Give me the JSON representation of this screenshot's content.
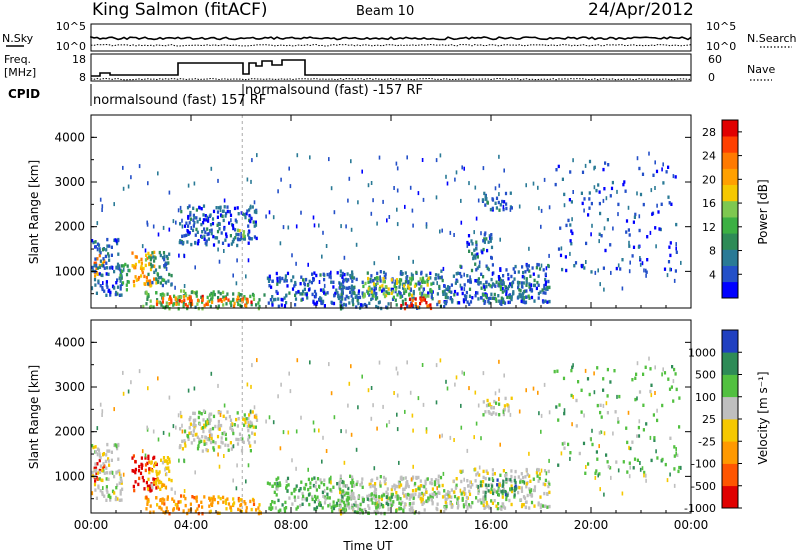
{
  "header": {
    "station": "King Salmon (fitACF)",
    "beam": "Beam 10",
    "date": "24/Apr/2012"
  },
  "top_panels": {
    "nsky_label": "N.Sky",
    "nsky_ticks": [
      "10^5",
      "10^0"
    ],
    "nsearch_label": "N.Search",
    "nsearch_ticks": [
      "10^5",
      "10^0"
    ],
    "freq_label_1": "Freq.",
    "freq_label_2": "[MHz]",
    "freq_ticks": [
      "18",
      "8"
    ],
    "nave_label": "Nave",
    "nave_ticks": [
      "60",
      "0"
    ],
    "cpid_label": "CPID",
    "cpid_modes": [
      "normalsound (fast) 157 RF",
      "normalsound (fast) -157 RF"
    ]
  },
  "chart_data": [
    {
      "type": "heatmap",
      "name": "power",
      "ylabel": "Slant Range [km]",
      "xlabel": "",
      "x_ticks": [
        "00:00",
        "04:00",
        "08:00",
        "12:00",
        "16:00",
        "20:00",
        "00:00"
      ],
      "xlim_hours": [
        0,
        24
      ],
      "ylim_km": [
        180,
        4500
      ],
      "y_ticks": [
        1000,
        2000,
        3000,
        4000
      ],
      "colorbar": {
        "label": "Power [dB]",
        "ticks": [
          "28",
          "24",
          "20",
          "16",
          "12",
          "8",
          "4"
        ],
        "range": [
          0,
          30
        ],
        "colors": [
          "#0000ff",
          "#2450c8",
          "#2a7a96",
          "#2e8b57",
          "#3cb043",
          "#7ec850",
          "#f5c800",
          "#ffa000",
          "#ff7a00",
          "#ff4000",
          "#e00000"
        ]
      },
      "regions": [
        {
          "t0": 0.1,
          "t1": 0.5,
          "r0": 850,
          "r1": 1450,
          "level": 22
        },
        {
          "t0": 0.0,
          "t1": 1.2,
          "r0": 500,
          "r1": 1750,
          "level": 5
        },
        {
          "t0": 1.0,
          "t1": 1.5,
          "r0": 600,
          "r1": 1200,
          "level": 10
        },
        {
          "t0": 1.6,
          "t1": 2.6,
          "r0": 700,
          "r1": 1500,
          "level": 20
        },
        {
          "t0": 2.2,
          "t1": 3.2,
          "r0": 700,
          "r1": 1500,
          "level": 8
        },
        {
          "t0": 2.0,
          "t1": 6.9,
          "r0": 200,
          "r1": 600,
          "level": 12
        },
        {
          "t0": 2.3,
          "t1": 6.5,
          "r0": 250,
          "r1": 480,
          "level": 24
        },
        {
          "t0": 3.5,
          "t1": 6.6,
          "r0": 1600,
          "r1": 2500,
          "level": 5
        },
        {
          "t0": 5.8,
          "t1": 6.2,
          "r0": 1750,
          "r1": 2000,
          "level": 14
        },
        {
          "t0": 7.0,
          "t1": 10.5,
          "r0": 250,
          "r1": 1000,
          "level": 5
        },
        {
          "t0": 9.8,
          "t1": 14.5,
          "r0": 200,
          "r1": 1050,
          "level": 6
        },
        {
          "t0": 10.8,
          "t1": 13.6,
          "r0": 450,
          "r1": 900,
          "level": 15
        },
        {
          "t0": 12.3,
          "t1": 13.9,
          "r0": 200,
          "r1": 450,
          "level": 26
        },
        {
          "t0": 14.5,
          "t1": 18.3,
          "r0": 300,
          "r1": 1200,
          "level": 5
        },
        {
          "t0": 15.5,
          "t1": 17.5,
          "r0": 400,
          "r1": 800,
          "level": 9
        },
        {
          "t0": 15.0,
          "t1": 16.0,
          "r0": 1300,
          "r1": 1900,
          "level": 5
        },
        {
          "t0": 15.6,
          "t1": 16.8,
          "r0": 2400,
          "r1": 2800,
          "level": 5
        },
        {
          "t0": 18.5,
          "t1": 23.5,
          "r0": 1000,
          "r1": 3500,
          "level": 4
        }
      ]
    },
    {
      "type": "heatmap",
      "name": "velocity",
      "ylabel": "Slant Range [km]",
      "xlabel": "Time UT",
      "x_ticks": [
        "00:00",
        "04:00",
        "08:00",
        "12:00",
        "16:00",
        "20:00",
        "00:00"
      ],
      "xlim_hours": [
        0,
        24
      ],
      "ylim_km": [
        180,
        4500
      ],
      "y_ticks": [
        1000,
        2000,
        3000,
        4000
      ],
      "colorbar": {
        "label": "Velocity [m s⁻¹]",
        "ticks": [
          "1000",
          "500",
          "100",
          "25",
          "-25",
          "-100",
          "-500",
          "-1000"
        ],
        "colors": [
          "#2040c0",
          "#2e8b57",
          "#52c040",
          "#bfbfbf",
          "#f5c800",
          "#ff9900",
          "#ff5500",
          "#e00000"
        ]
      },
      "regions": [
        {
          "t0": 0.1,
          "t1": 0.5,
          "r0": 850,
          "r1": 1450,
          "cls": 7
        },
        {
          "t0": 0.0,
          "t1": 1.2,
          "r0": 500,
          "r1": 1750,
          "cls": 3
        },
        {
          "t0": 1.6,
          "t1": 2.6,
          "r0": 700,
          "r1": 1500,
          "cls": 7
        },
        {
          "t0": 2.2,
          "t1": 3.2,
          "r0": 700,
          "r1": 1500,
          "cls": 4
        },
        {
          "t0": 2.0,
          "t1": 6.9,
          "r0": 200,
          "r1": 600,
          "cls": 5
        },
        {
          "t0": 3.5,
          "t1": 6.6,
          "r0": 1600,
          "r1": 2500,
          "cls": 3
        },
        {
          "t0": 7.0,
          "t1": 10.5,
          "r0": 250,
          "r1": 1000,
          "cls": 2
        },
        {
          "t0": 9.8,
          "t1": 14.5,
          "r0": 200,
          "r1": 1050,
          "cls": 3
        },
        {
          "t0": 10.0,
          "t1": 12.5,
          "r0": 200,
          "r1": 600,
          "cls": 2
        },
        {
          "t0": 12.5,
          "t1": 13.8,
          "r0": 400,
          "r1": 1000,
          "cls": 3
        },
        {
          "t0": 14.5,
          "t1": 18.3,
          "r0": 300,
          "r1": 1200,
          "cls": 3
        },
        {
          "t0": 15.5,
          "t1": 17.0,
          "r0": 600,
          "r1": 1000,
          "cls": 1
        },
        {
          "t0": 15.6,
          "t1": 16.8,
          "r0": 2400,
          "r1": 2800,
          "cls": 3
        },
        {
          "t0": 18.5,
          "t1": 23.5,
          "r0": 1000,
          "r1": 3500,
          "cls": 2
        }
      ]
    }
  ]
}
